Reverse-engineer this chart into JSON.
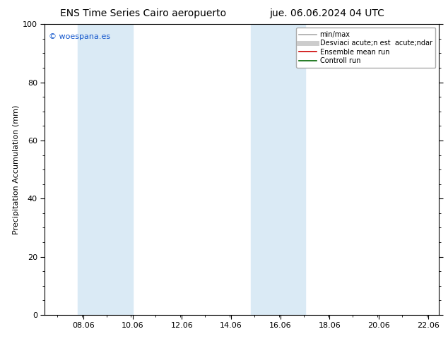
{
  "title_left": "ENS Time Series Cairo aeropuerto",
  "title_right": "jue. 06.06.2024 04 UTC",
  "ylabel": "Precipitation Accumulation (mm)",
  "ylim": [
    0,
    100
  ],
  "yticks": [
    0,
    20,
    40,
    60,
    80,
    100
  ],
  "xmin": 6.5,
  "xmax": 22.5,
  "xtick_positions": [
    8.06,
    10.06,
    12.06,
    14.06,
    16.06,
    18.06,
    20.06,
    22.06
  ],
  "xtick_labels": [
    "08.06",
    "10.06",
    "12.06",
    "14.06",
    "16.06",
    "18.06",
    "20.06",
    "22.06"
  ],
  "shade_bands": [
    {
      "xmin": 7.85,
      "xmax": 10.06,
      "color": "#daeaf5"
    },
    {
      "xmin": 14.85,
      "xmax": 17.06,
      "color": "#daeaf5"
    }
  ],
  "watermark": "© woespana.es",
  "legend_entries": [
    {
      "label": "min/max",
      "color": "#aaaaaa",
      "lw": 1.2,
      "style": "solid"
    },
    {
      "label": "Desviaci acute;n est  acute;ndar",
      "color": "#cccccc",
      "lw": 5,
      "style": "solid"
    },
    {
      "label": "Ensemble mean run",
      "color": "#cc0000",
      "lw": 1.2,
      "style": "solid"
    },
    {
      "label": "Controll run",
      "color": "#006600",
      "lw": 1.2,
      "style": "solid"
    }
  ],
  "background_color": "#ffffff",
  "plot_bg_color": "#ffffff",
  "title_fontsize": 10,
  "axis_label_fontsize": 8,
  "tick_fontsize": 8,
  "legend_fontsize": 7
}
